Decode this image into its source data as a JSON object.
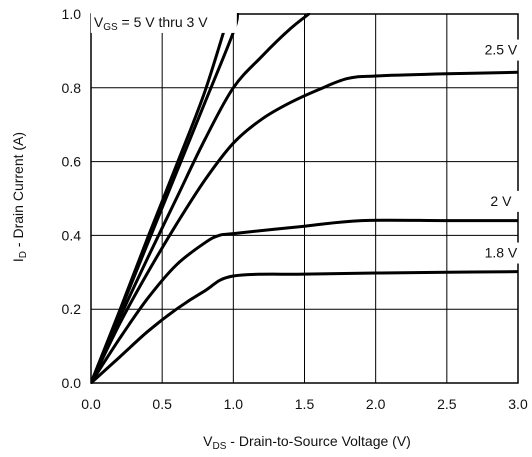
{
  "chart_data": {
    "type": "line",
    "title": "",
    "xlabel": {
      "main": "V",
      "sub": "DS",
      "rest": " - Drain-to-Source Voltage (V)"
    },
    "ylabel": {
      "main": "I",
      "sub": "D",
      "rest": " - Drain Current (A)"
    },
    "xlim": [
      0,
      3
    ],
    "ylim": [
      0,
      1
    ],
    "grid": true,
    "xticks": [
      "0.0",
      "0.5",
      "1.0",
      "1.5",
      "2.0",
      "2.5",
      "3.0"
    ],
    "yticks": [
      "0.0",
      "0.2",
      "0.4",
      "0.6",
      "0.8",
      "1.0"
    ],
    "series": [
      {
        "x": [
          0,
          0.2,
          0.4,
          0.6,
          0.8,
          0.97
        ],
        "y": [
          0,
          0.195,
          0.395,
          0.59,
          0.79,
          1.0
        ]
      },
      {
        "x": [
          0,
          0.2,
          0.4,
          0.6,
          0.8,
          1.0,
          1.03
        ],
        "y": [
          0,
          0.19,
          0.38,
          0.57,
          0.76,
          0.95,
          1.0
        ]
      },
      {
        "x": [
          0,
          0.2,
          0.4,
          0.6,
          0.8,
          1.0,
          1.2,
          1.4,
          1.53
        ],
        "y": [
          0,
          0.175,
          0.34,
          0.5,
          0.66,
          0.8,
          0.885,
          0.96,
          1.0
        ]
      },
      {
        "x": [
          0,
          0.2,
          0.4,
          0.6,
          0.8,
          1.0,
          1.2,
          1.4,
          1.6,
          1.8,
          2.0,
          2.5,
          3.0
        ],
        "y": [
          0,
          0.16,
          0.3,
          0.43,
          0.55,
          0.65,
          0.715,
          0.76,
          0.795,
          0.825,
          0.832,
          0.838,
          0.842
        ]
      },
      {
        "x": [
          0,
          0.2,
          0.4,
          0.6,
          0.8,
          0.9,
          1.0,
          1.5,
          1.9,
          2.5,
          3.0
        ],
        "y": [
          0,
          0.12,
          0.23,
          0.32,
          0.38,
          0.4,
          0.405,
          0.425,
          0.44,
          0.44,
          0.44
        ]
      },
      {
        "x": [
          0,
          0.2,
          0.4,
          0.6,
          0.8,
          1.0,
          1.5,
          2.0,
          2.5,
          3.0
        ],
        "y": [
          0,
          0.07,
          0.14,
          0.2,
          0.25,
          0.29,
          0.295,
          0.298,
          0.3,
          0.302
        ]
      }
    ],
    "annotations": [
      {
        "main": "V",
        "sub": "GS",
        "rest": " = 5 V thru 3 V",
        "x": 0.02,
        "y": 0.965
      },
      {
        "main": "2.5 V",
        "x": 2.88,
        "y": 0.89
      },
      {
        "main": "2 V",
        "x": 2.88,
        "y": 0.48
      },
      {
        "main": "1.8 V",
        "x": 2.88,
        "y": 0.34
      }
    ]
  }
}
